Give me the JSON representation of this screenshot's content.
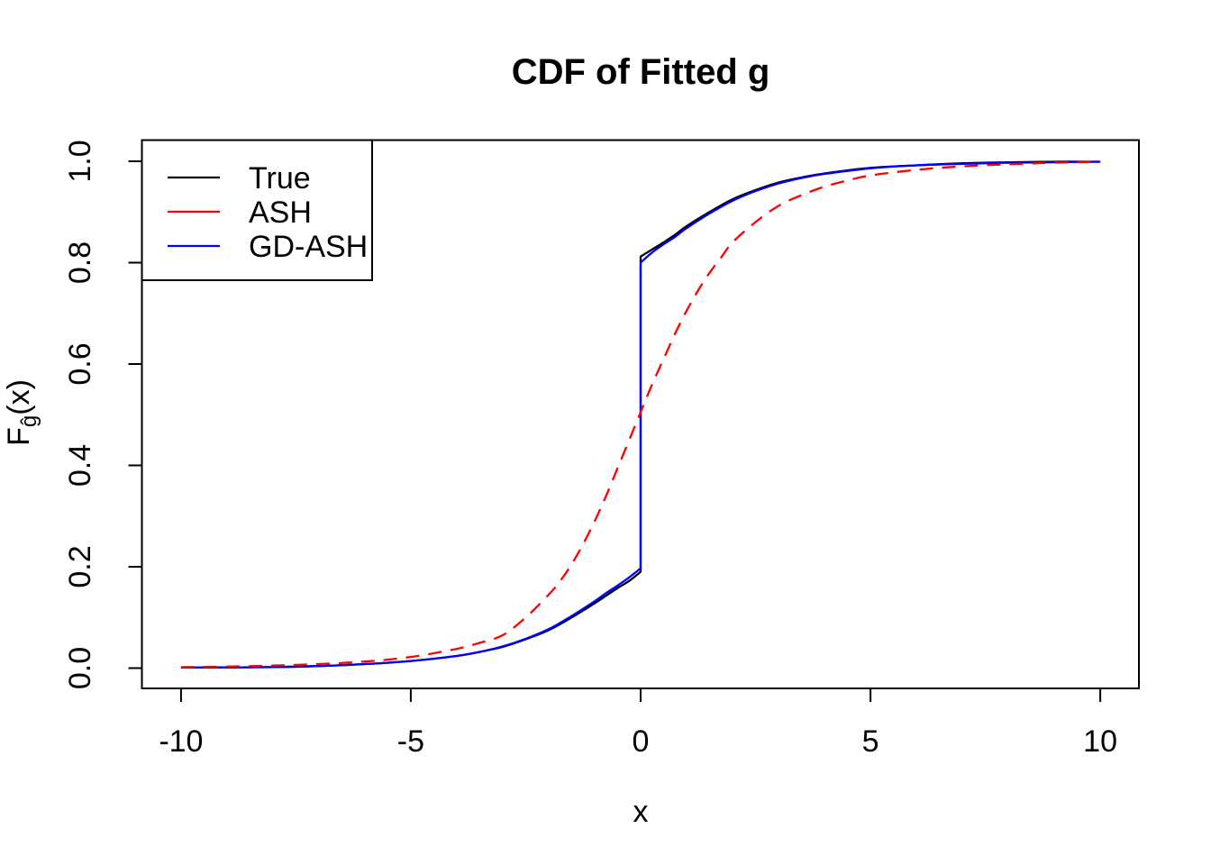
{
  "figure": {
    "background": "#ffffff",
    "frame_color": "#000000"
  },
  "chart_data": {
    "type": "line",
    "title": "CDF of Fitted g",
    "xlabel": "x",
    "ylabel": "F_ĝ(x)",
    "ylabel_parts": {
      "main": "F",
      "sub": "ĝ",
      "suffix": "(x)"
    },
    "x_ticks": [
      -10,
      -5,
      0,
      5,
      10
    ],
    "x_tick_labels": [
      "-10",
      "-5",
      "0",
      "5",
      "10"
    ],
    "y_ticks": [
      0.0,
      0.2,
      0.4,
      0.6,
      0.8,
      1.0
    ],
    "y_tick_labels": [
      "0.0",
      "0.2",
      "0.4",
      "0.6",
      "0.8",
      "1.0"
    ],
    "xlim": [
      -10.85,
      10.84
    ],
    "ylim": [
      -0.04,
      1.0417
    ],
    "grid": false,
    "legend": {
      "position": "top-left",
      "items": [
        "True",
        "ASH",
        "GD-ASH"
      ]
    },
    "series": [
      {
        "name": "True",
        "color": "#000000",
        "line_style": "solid",
        "points": [
          [
            -10,
            0.001
          ],
          [
            -9,
            0.0015
          ],
          [
            -8,
            0.002
          ],
          [
            -7,
            0.004
          ],
          [
            -6,
            0.008
          ],
          [
            -5,
            0.014
          ],
          [
            -4,
            0.024
          ],
          [
            -3.5,
            0.032
          ],
          [
            -3,
            0.042
          ],
          [
            -2.5,
            0.057
          ],
          [
            -2,
            0.075
          ],
          [
            -1.5,
            0.1
          ],
          [
            -1,
            0.128
          ],
          [
            -0.75,
            0.143
          ],
          [
            -0.5,
            0.158
          ],
          [
            -0.25,
            0.172
          ],
          [
            0,
            0.19
          ],
          [
            0,
            0.812
          ],
          [
            0.25,
            0.826
          ],
          [
            0.5,
            0.84
          ],
          [
            0.75,
            0.855
          ],
          [
            1,
            0.872
          ],
          [
            1.5,
            0.9
          ],
          [
            2,
            0.925
          ],
          [
            2.5,
            0.943
          ],
          [
            3,
            0.958
          ],
          [
            3.5,
            0.968
          ],
          [
            4,
            0.976
          ],
          [
            5,
            0.987
          ],
          [
            6,
            0.992
          ],
          [
            7,
            0.996
          ],
          [
            8,
            0.998
          ],
          [
            9,
            0.999
          ],
          [
            10,
            0.999
          ]
        ]
      },
      {
        "name": "ASH",
        "color": "#ff0000",
        "line_style": "dashed",
        "points": [
          [
            -10,
            0.002
          ],
          [
            -9,
            0.003
          ],
          [
            -8,
            0.005
          ],
          [
            -7,
            0.008
          ],
          [
            -6,
            0.013
          ],
          [
            -5,
            0.022
          ],
          [
            -4,
            0.038
          ],
          [
            -3.5,
            0.05
          ],
          [
            -3,
            0.065
          ],
          [
            -2.5,
            0.1
          ],
          [
            -2,
            0.145
          ],
          [
            -1.75,
            0.172
          ],
          [
            -1.5,
            0.205
          ],
          [
            -1.25,
            0.245
          ],
          [
            -1,
            0.29
          ],
          [
            -0.75,
            0.34
          ],
          [
            -0.5,
            0.395
          ],
          [
            -0.25,
            0.45
          ],
          [
            0,
            0.505
          ],
          [
            0.25,
            0.56
          ],
          [
            0.5,
            0.61
          ],
          [
            0.75,
            0.66
          ],
          [
            1,
            0.705
          ],
          [
            1.25,
            0.745
          ],
          [
            1.5,
            0.78
          ],
          [
            1.75,
            0.81
          ],
          [
            2,
            0.84
          ],
          [
            2.5,
            0.88
          ],
          [
            3,
            0.912
          ],
          [
            3.5,
            0.933
          ],
          [
            4,
            0.95
          ],
          [
            4.5,
            0.962
          ],
          [
            5,
            0.972
          ],
          [
            6,
            0.983
          ],
          [
            7,
            0.99
          ],
          [
            8,
            0.994
          ],
          [
            9,
            0.997
          ],
          [
            10,
            0.999
          ]
        ]
      },
      {
        "name": "GD-ASH",
        "color": "#0000ff",
        "line_style": "solid",
        "points": [
          [
            -10,
            0.001
          ],
          [
            -9,
            0.0015
          ],
          [
            -8,
            0.002
          ],
          [
            -7,
            0.004
          ],
          [
            -6,
            0.008
          ],
          [
            -5,
            0.014
          ],
          [
            -4,
            0.024
          ],
          [
            -3.5,
            0.032
          ],
          [
            -3,
            0.043
          ],
          [
            -2.5,
            0.058
          ],
          [
            -2,
            0.077
          ],
          [
            -1.5,
            0.103
          ],
          [
            -1,
            0.132
          ],
          [
            -0.75,
            0.148
          ],
          [
            -0.5,
            0.163
          ],
          [
            -0.25,
            0.179
          ],
          [
            0,
            0.197
          ],
          [
            0,
            0.8
          ],
          [
            0.25,
            0.82
          ],
          [
            0.5,
            0.836
          ],
          [
            0.75,
            0.851
          ],
          [
            1,
            0.868
          ],
          [
            1.5,
            0.897
          ],
          [
            2,
            0.922
          ],
          [
            2.5,
            0.941
          ],
          [
            3,
            0.956
          ],
          [
            3.5,
            0.967
          ],
          [
            4,
            0.975
          ],
          [
            5,
            0.986
          ],
          [
            6,
            0.992
          ],
          [
            7,
            0.995
          ],
          [
            8,
            0.997
          ],
          [
            9,
            0.998
          ],
          [
            10,
            0.999
          ]
        ]
      }
    ]
  }
}
